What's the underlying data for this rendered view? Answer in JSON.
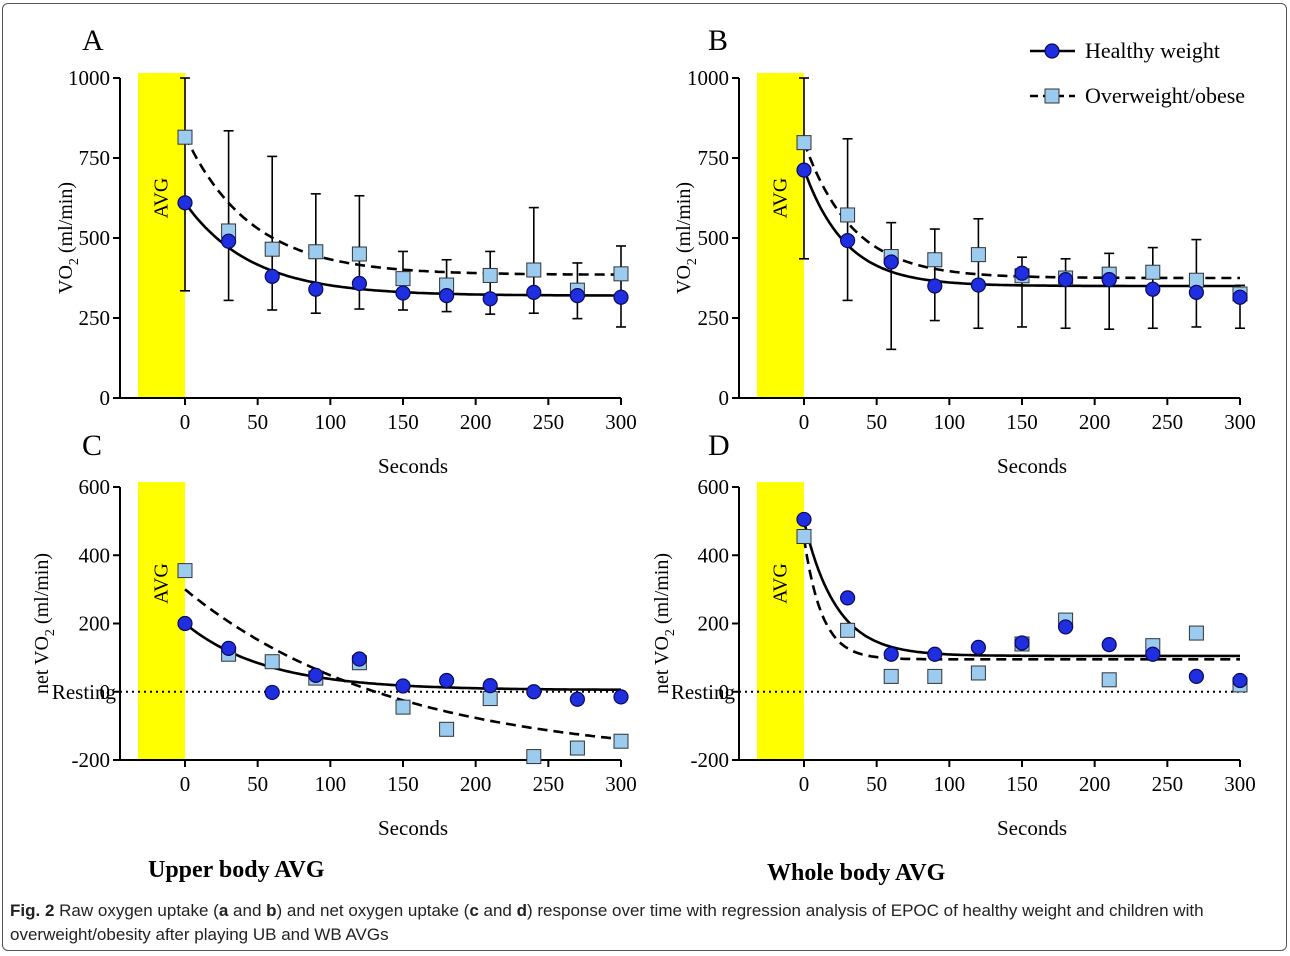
{
  "figure": {
    "legend": {
      "healthy": "Healthy weight",
      "over": "Overweight/obese"
    },
    "subtitles": {
      "left": "Upper body AVG",
      "right": "Whole body AVG"
    },
    "caption": {
      "fig_label": "Fig. 2",
      "parts": [
        "Raw oxygen uptake (",
        "a",
        " and ",
        "b",
        ") and net oxygen uptake (",
        "c",
        " and ",
        "d",
        ") response over time with regression analysis of EPOC of healthy weight and children with overweight/obesity after playing UB and WB AVGs"
      ]
    },
    "colors": {
      "healthy_fill": "#1f2fe0",
      "healthy_edge": "#0a0a5a",
      "over_fill": "#9ccbf0",
      "over_edge": "#333333",
      "avg_band": "#ffff00"
    }
  },
  "chart_data": [
    {
      "panel": "A",
      "type": "scatter",
      "xlabel": "Seconds",
      "ylabel": "VO2 (ml/min)",
      "xlim": [
        0,
        300
      ],
      "ylim": [
        0,
        1000
      ],
      "xticks": [
        0,
        50,
        100,
        150,
        200,
        250,
        300
      ],
      "yticks": [
        0,
        250,
        500,
        750,
        1000
      ],
      "band_label": "AVG",
      "x": [
        0,
        30,
        60,
        90,
        120,
        150,
        180,
        210,
        240,
        270,
        300
      ],
      "series": [
        {
          "name": "Healthy weight",
          "values": [
            610,
            490,
            380,
            340,
            358,
            328,
            320,
            310,
            330,
            320,
            315
          ],
          "error_bars": null
        },
        {
          "name": "Overweight/obese",
          "values": [
            815,
            522,
            465,
            457,
            450,
            373,
            353,
            383,
            400,
            337,
            388
          ],
          "error_bars": [
            [
              335,
              1000
            ],
            [
              305,
              835
            ],
            [
              275,
              755
            ],
            [
              265,
              638
            ],
            [
              278,
              632
            ],
            [
              275,
              458
            ],
            [
              270,
              432
            ],
            [
              262,
              458
            ],
            [
              265,
              595
            ],
            [
              248,
              422
            ],
            [
              222,
              475
            ]
          ]
        }
      ],
      "fits": [
        {
          "series": "Healthy weight",
          "style": "solid",
          "plateau": 320,
          "start": 610,
          "k": 0.022
        },
        {
          "series": "Overweight/obese",
          "style": "dashed",
          "plateau": 385,
          "start": 820,
          "k": 0.022
        }
      ]
    },
    {
      "panel": "B",
      "type": "scatter",
      "xlabel": "Seconds",
      "ylabel": "VO2 (ml/min)",
      "xlim": [
        0,
        300
      ],
      "ylim": [
        0,
        1000
      ],
      "xticks": [
        0,
        50,
        100,
        150,
        200,
        250,
        300
      ],
      "yticks": [
        0,
        250,
        500,
        750,
        1000
      ],
      "band_label": "AVG",
      "x": [
        0,
        30,
        60,
        90,
        120,
        150,
        180,
        210,
        240,
        270,
        300
      ],
      "series": [
        {
          "name": "Healthy weight",
          "values": [
            712,
            492,
            425,
            350,
            353,
            390,
            370,
            370,
            340,
            330,
            315
          ],
          "error_bars": null
        },
        {
          "name": "Overweight/obese",
          "values": [
            798,
            572,
            442,
            432,
            448,
            382,
            375,
            387,
            393,
            368,
            325
          ],
          "error_bars": [
            [
              435,
              1000
            ],
            [
              305,
              810
            ],
            [
              152,
              548
            ],
            [
              242,
              528
            ],
            [
              218,
              560
            ],
            [
              222,
              440
            ],
            [
              218,
              435
            ],
            [
              215,
              452
            ],
            [
              218,
              470
            ],
            [
              222,
              495
            ],
            [
              218,
              352
            ]
          ]
        }
      ],
      "fits": [
        {
          "series": "Healthy weight",
          "style": "solid",
          "plateau": 350,
          "start": 715,
          "k": 0.035
        },
        {
          "series": "Overweight/obese",
          "style": "dashed",
          "plateau": 375,
          "start": 800,
          "k": 0.03
        }
      ]
    },
    {
      "panel": "C",
      "type": "scatter",
      "xlabel": "Seconds",
      "ylabel": "net VO2 (ml/min)",
      "xlim": [
        0,
        300
      ],
      "ylim": [
        -200,
        600
      ],
      "xticks": [
        0,
        50,
        100,
        150,
        200,
        250,
        300
      ],
      "yticks": [
        -200,
        0,
        200,
        400,
        600
      ],
      "band_label": "AVG",
      "resting_label": "Resting",
      "x": [
        0,
        30,
        60,
        90,
        120,
        150,
        180,
        210,
        240,
        270,
        300
      ],
      "series": [
        {
          "name": "Healthy weight",
          "values": [
            200,
            127,
            -2,
            48,
            96,
            17,
            33,
            18,
            0,
            -22,
            -15
          ],
          "error_bars": null
        },
        {
          "name": "Overweight/obese",
          "values": [
            355,
            110,
            88,
            40,
            85,
            -45,
            -110,
            -20,
            -190,
            -165,
            -145
          ],
          "error_bars": null
        }
      ],
      "fits": [
        {
          "series": "Healthy weight",
          "style": "solid",
          "plateau": 5,
          "start": 200,
          "k": 0.018
        },
        {
          "series": "Overweight/obese",
          "style": "dashed",
          "plateau": -200,
          "start": 300,
          "k": 0.007
        }
      ]
    },
    {
      "panel": "D",
      "type": "scatter",
      "xlabel": "Seconds",
      "ylabel": "net VO2 (ml/min)",
      "xlim": [
        0,
        300
      ],
      "ylim": [
        -200,
        600
      ],
      "xticks": [
        0,
        50,
        100,
        150,
        200,
        250,
        300
      ],
      "yticks": [
        -200,
        0,
        200,
        400,
        600
      ],
      "band_label": "AVG",
      "resting_label": "Resting",
      "x": [
        0,
        30,
        60,
        90,
        120,
        150,
        180,
        210,
        240,
        270,
        300
      ],
      "series": [
        {
          "name": "Healthy weight",
          "values": [
            505,
            275,
            110,
            110,
            130,
            143,
            190,
            138,
            110,
            45,
            33
          ],
          "error_bars": null
        },
        {
          "name": "Overweight/obese",
          "values": [
            455,
            180,
            45,
            45,
            55,
            140,
            210,
            35,
            135,
            172,
            20
          ],
          "error_bars": null
        }
      ],
      "fits": [
        {
          "series": "Healthy weight",
          "style": "solid",
          "plateau": 105,
          "start": 500,
          "k": 0.045
        },
        {
          "series": "Overweight/obese",
          "style": "dashed",
          "plateau": 95,
          "start": 450,
          "k": 0.08
        }
      ]
    }
  ]
}
